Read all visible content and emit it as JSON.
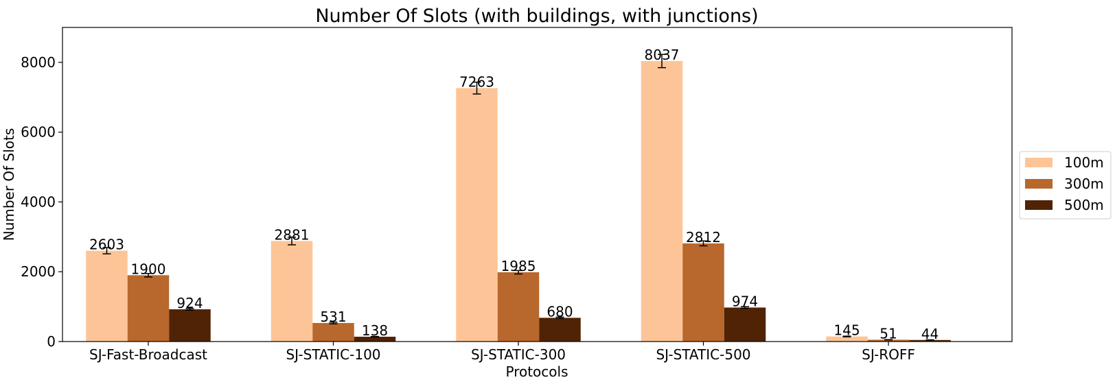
{
  "chart_data": {
    "type": "bar",
    "title": "Number Of Slots (with buildings, with junctions)",
    "xlabel": "Protocols",
    "ylabel": "Number Of Slots",
    "categories": [
      "SJ-Fast-Broadcast",
      "SJ-STATIC-100",
      "SJ-STATIC-300",
      "SJ-STATIC-500",
      "SJ-ROFF"
    ],
    "ylim": [
      0,
      9000
    ],
    "yticks": [
      0,
      2000,
      4000,
      6000,
      8000
    ],
    "ytick_labels": [
      "0",
      "2000",
      "4000",
      "6000",
      "8000"
    ],
    "grid": false,
    "legend_position": "right",
    "series": [
      {
        "name": "100m",
        "color": "#fdc597",
        "values": [
          2603,
          2881,
          7263,
          8037,
          145
        ],
        "errors": [
          90,
          110,
          170,
          190,
          10
        ],
        "labels": [
          "2603",
          "2881",
          "7263",
          "8037",
          "145"
        ]
      },
      {
        "name": "300m",
        "color": "#b8682c",
        "values": [
          1900,
          531,
          1985,
          2812,
          51
        ],
        "errors": [
          50,
          25,
          50,
          70,
          4
        ],
        "labels": [
          "1900",
          "531",
          "1985",
          "2812",
          "51"
        ]
      },
      {
        "name": "500m",
        "color": "#502305",
        "values": [
          924,
          138,
          680,
          974,
          44
        ],
        "errors": [
          25,
          8,
          20,
          25,
          4
        ],
        "labels": [
          "924",
          "138",
          "680",
          "974",
          "44"
        ]
      }
    ]
  }
}
